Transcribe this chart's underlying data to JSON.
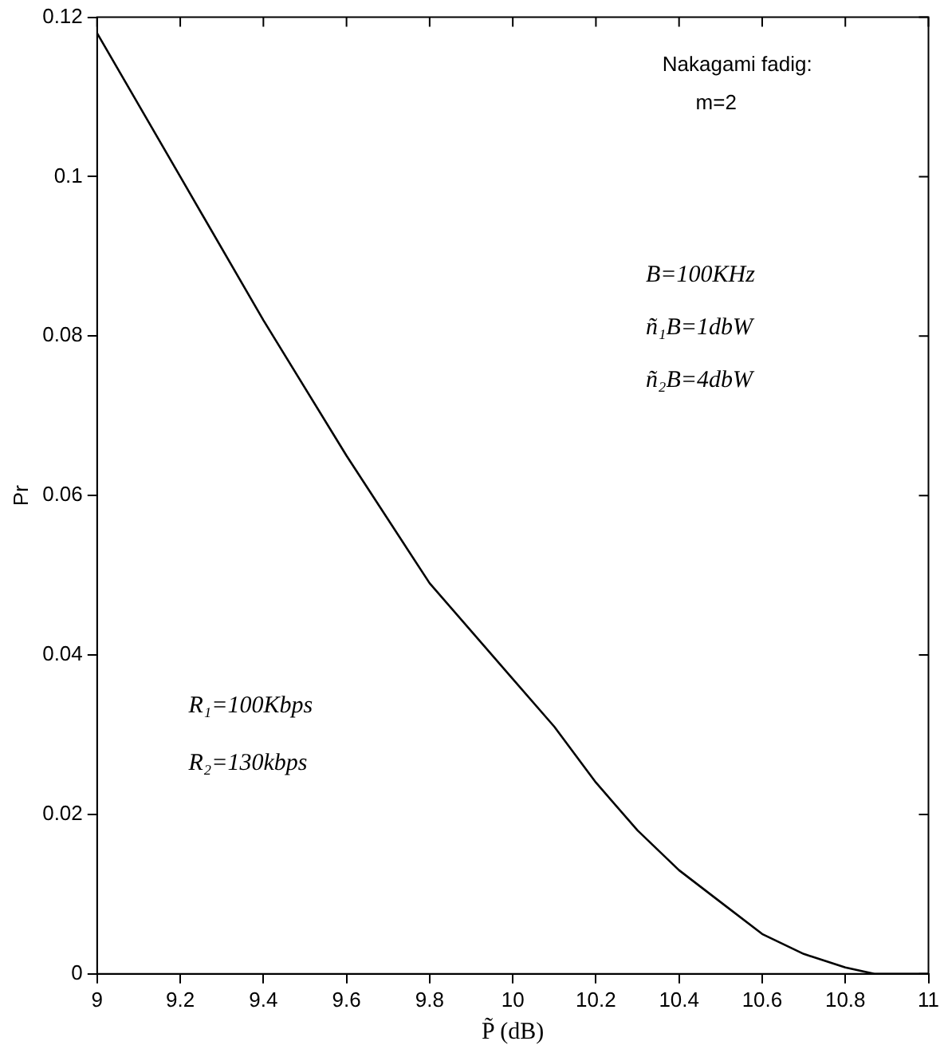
{
  "chart_data": {
    "type": "line",
    "xlabel": "P̃ (dB)",
    "ylabel": "Pr",
    "annotations": [
      "Nakagami fadig:",
      "m=2",
      "B=100KHz",
      "ñ₁B=1dbW",
      "ñ₂B=4dbW",
      "R₁=100Kbps",
      "R₂=130kbps"
    ],
    "x": [
      9,
      9.2,
      9.4,
      9.6,
      9.8,
      10,
      10.1,
      10.2,
      10.3,
      10.4,
      10.5,
      10.6,
      10.7,
      10.8,
      10.87,
      11
    ],
    "series": [
      {
        "color": "#000000",
        "values": [
          0.118,
          0.1,
          0.082,
          0.065,
          0.049,
          0.037,
          0.031,
          0.024,
          0.018,
          0.013,
          0.009,
          0.005,
          0.0025,
          0.0008,
          0,
          0
        ]
      }
    ],
    "xlim": [
      9,
      11
    ],
    "xticks": [
      9,
      9.2,
      9.4,
      9.6,
      9.8,
      10,
      10.2,
      10.4,
      10.6,
      10.8,
      11
    ],
    "ylim": [
      0,
      0.12
    ],
    "yticks": [
      0,
      0.02,
      0.04,
      0.06,
      0.08,
      0.1,
      0.12
    ],
    "grid": false,
    "legend": false,
    "marker": "none",
    "line_style": "solid"
  }
}
